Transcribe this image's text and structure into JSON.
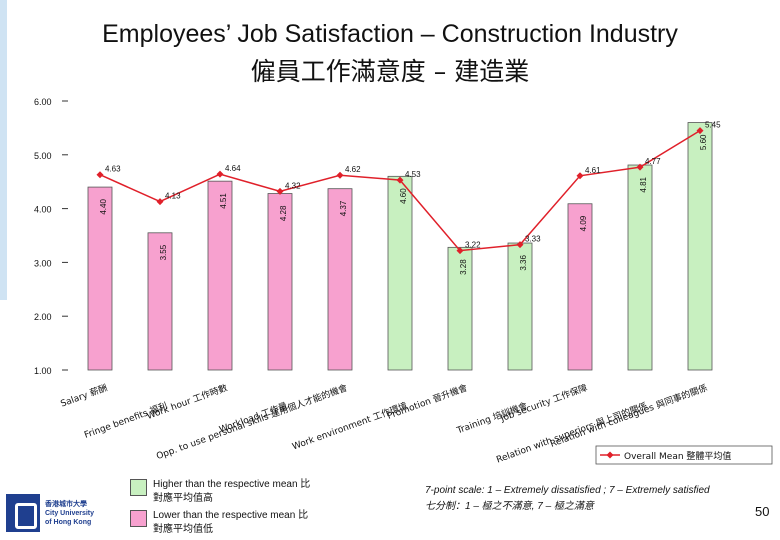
{
  "slide": {
    "title_en": "Employees’ Job Satisfaction – Construction Industry",
    "title_zh": "僱員工作滿意度 – 建造業",
    "page_number": "50",
    "scale_note_en": "7-point scale: 1 – Extremely dissatisfied ; 7 – Extremely satisfied",
    "scale_note_zh": "七分制：1 – 極之不滿意, 7 – 極之滿意",
    "logo_line1": "香港城市大學",
    "logo_line2": "City University",
    "logo_line3": "of Hong Kong"
  },
  "legend": {
    "higher_line1": "Higher than the respective mean 比",
    "higher_line2": "對應平均值高",
    "lower_line1": "Lower than the respective mean 比",
    "lower_line2": "對應平均值低",
    "higher_color": "#c8f0c0",
    "lower_color": "#f7a1cf",
    "line_label": "Overall Mean 整體平均值"
  },
  "chart_data": {
    "type": "bar",
    "ylim": [
      1,
      6
    ],
    "yticks": [
      "1.00",
      "2.00",
      "3.00",
      "4.00",
      "5.00",
      "6.00"
    ],
    "categories": [
      "Salary 薪酬",
      "Fringe benefits 福利",
      "Work hour 工作時數",
      "Workload 工作量",
      "Opp. to use personal skills 運用個人才能的機會",
      "Work environment 工作環境",
      "Promotion 晉升機會",
      "Training 培訓機會",
      "Job security 工作保障",
      "Relation with superiors 與上司的關係",
      "Relation with colleagues 與同事的關係"
    ],
    "series": [
      {
        "kind": "bar",
        "values": [
          4.4,
          3.55,
          4.51,
          4.28,
          4.37,
          4.6,
          3.28,
          3.36,
          4.09,
          4.81,
          5.6
        ],
        "labels": [
          "4.40",
          "3.55",
          "4.51",
          "4.28",
          "4.37",
          "4.60",
          "3.28",
          "3.36",
          "4.09",
          "4.81",
          "5.60"
        ],
        "status": [
          "lower",
          "lower",
          "lower",
          "lower",
          "lower",
          "higher",
          "higher",
          "higher",
          "lower",
          "higher",
          "higher"
        ]
      },
      {
        "name": "Overall Mean 整體平均值",
        "kind": "line",
        "values": [
          4.63,
          4.13,
          4.64,
          4.32,
          4.62,
          4.53,
          3.22,
          3.33,
          4.61,
          4.77,
          5.45
        ],
        "labels": [
          "4.63",
          "4.13",
          "4.64",
          "4.32",
          "4.62",
          "4.53",
          "3.22",
          "3.33",
          "4.61",
          "4.77",
          "5.45"
        ],
        "color": "#e0202a"
      }
    ]
  }
}
